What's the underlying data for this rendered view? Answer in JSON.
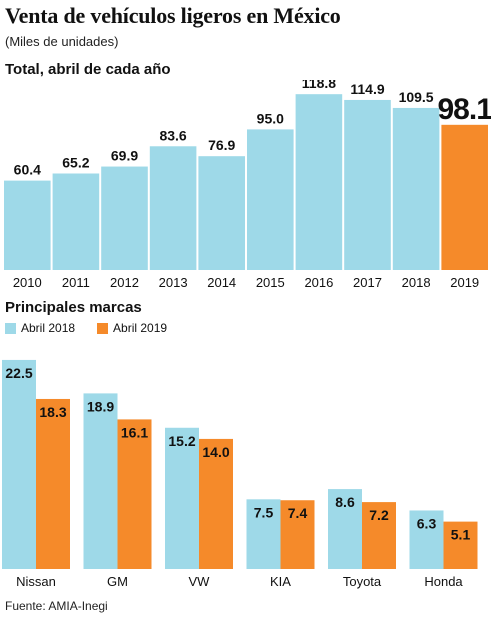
{
  "title": "Venta de vehículos ligeros en México",
  "subtitle": "(Miles de unidades)",
  "section1_label": "Total, abril de cada año",
  "section2_label": "Principales marcas",
  "source": "Fuente: AMIA-Inegi",
  "colors": {
    "blue": "#9ed9e8",
    "orange": "#f58a2a",
    "text": "#111111"
  },
  "chart_data": [
    {
      "type": "bar",
      "title": "Total, abril de cada año",
      "categories": [
        "2010",
        "2011",
        "2012",
        "2013",
        "2014",
        "2015",
        "2016",
        "2017",
        "2018",
        "2019"
      ],
      "values": [
        60.4,
        65.2,
        69.9,
        83.6,
        76.9,
        95.0,
        118.8,
        114.9,
        109.5,
        98.1
      ],
      "value_labels": [
        "60.4",
        "65.2",
        "69.9",
        "83.6",
        "76.9",
        "95.0",
        "118.8",
        "114.9",
        "109.5",
        "98.1"
      ],
      "highlight_index": 9,
      "ylim": [
        0,
        125
      ],
      "grid": false
    },
    {
      "type": "bar",
      "title": "Principales marcas",
      "categories": [
        "Nissan",
        "GM",
        "VW",
        "KIA",
        "Toyota",
        "Honda"
      ],
      "series": [
        {
          "name": "Abril 2018",
          "values": [
            22.5,
            18.9,
            15.2,
            7.5,
            8.6,
            6.3
          ],
          "value_labels": [
            "22.5",
            "18.9",
            "15.2",
            "7.5",
            "8.6",
            "6.3"
          ]
        },
        {
          "name": "Abril 2019",
          "values": [
            18.3,
            16.1,
            14.0,
            7.4,
            7.2,
            5.1
          ],
          "value_labels": [
            "18.3",
            "16.1",
            "14.0",
            "7.4",
            "7.2",
            "5.1"
          ]
        }
      ],
      "ylim": [
        0,
        24
      ],
      "legend_position": "top-left",
      "grid": false
    }
  ]
}
